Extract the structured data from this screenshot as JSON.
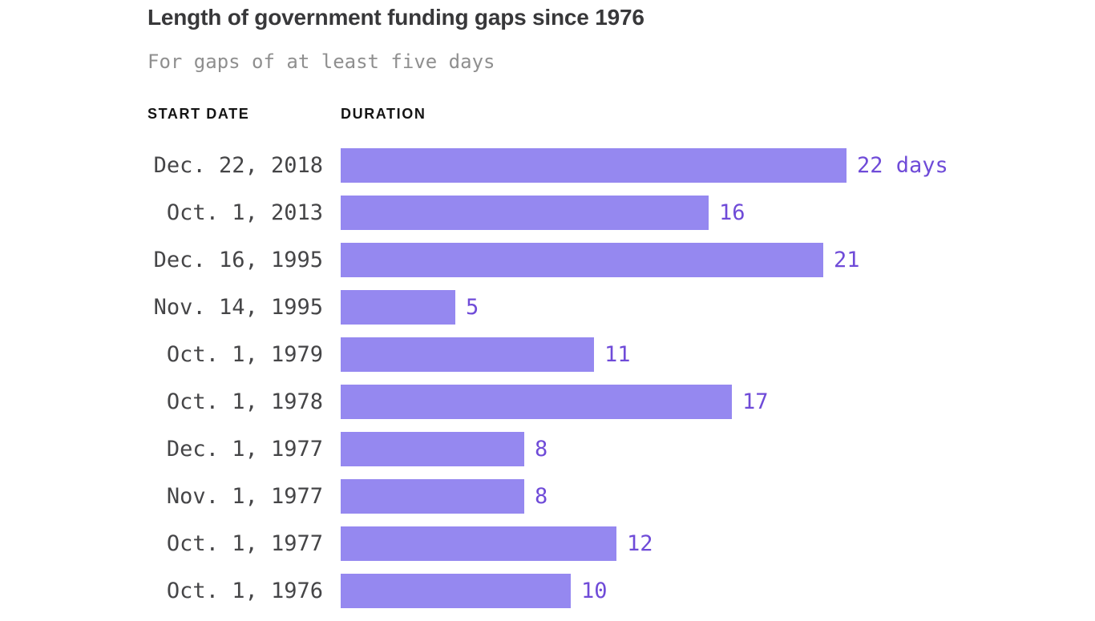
{
  "header": {
    "title": "Length of government funding gaps since 1976",
    "subtitle": "For gaps of at least five days"
  },
  "table": {
    "columns": [
      "START DATE",
      "DURATION"
    ]
  },
  "chart_data": {
    "type": "bar",
    "orientation": "horizontal",
    "title": "Length of government funding gaps since 1976",
    "subtitle": "For gaps of at least five days",
    "categories": [
      "Dec. 22, 2018",
      "Oct. 1, 2013",
      "Dec. 16, 1995",
      "Nov. 14, 1995",
      "Oct. 1, 1979",
      "Oct. 1, 1978",
      "Dec. 1, 1977",
      "Nov. 1, 1977",
      "Oct. 1, 1977",
      "Oct. 1, 1976"
    ],
    "values": [
      22,
      16,
      21,
      5,
      11,
      17,
      8,
      8,
      12,
      10
    ],
    "value_labels": [
      "22 days",
      "16",
      "21",
      "5",
      "11",
      "17",
      "8",
      "8",
      "12",
      "10"
    ],
    "unit": "days",
    "xlim": [
      0,
      22
    ],
    "grid": false,
    "legend": false,
    "axis_labels_visible": false,
    "colors": {
      "bar": "#9588F0",
      "value_label": "#6F4BD8",
      "title": "#38383a",
      "subtitle": "#8f8f8f",
      "date_label": "#454547",
      "column_header": "#141414",
      "background": "#ffffff"
    }
  }
}
